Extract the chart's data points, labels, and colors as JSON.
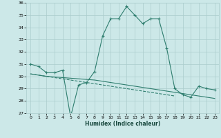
{
  "xlabel": "Humidex (Indice chaleur)",
  "x_values": [
    0,
    1,
    2,
    3,
    4,
    5,
    6,
    7,
    8,
    9,
    10,
    11,
    12,
    13,
    14,
    15,
    16,
    17,
    18,
    19,
    20,
    21,
    22,
    23
  ],
  "line1_y": [
    31.0,
    30.8,
    30.3,
    30.3,
    30.5,
    26.7,
    29.3,
    29.5,
    30.4,
    33.3,
    34.7,
    34.7,
    35.7,
    35.0,
    34.3,
    34.7,
    34.7,
    32.3,
    29.0,
    28.5,
    28.3,
    29.2,
    29.0,
    28.9
  ],
  "line2_y": [
    30.2,
    30.1,
    30.0,
    29.95,
    29.9,
    29.85,
    29.8,
    29.75,
    29.7,
    29.6,
    29.5,
    29.4,
    29.3,
    29.2,
    29.1,
    29.0,
    28.9,
    28.8,
    28.7,
    28.6,
    28.5,
    28.4,
    28.3,
    28.2
  ],
  "line3_y": [
    30.2,
    30.1,
    30.0,
    29.9,
    29.8,
    29.7,
    29.6,
    29.5,
    29.4,
    29.3,
    29.2,
    29.1,
    29.0,
    28.9,
    28.8,
    28.7,
    28.6,
    28.5,
    28.4,
    null,
    null,
    null,
    null,
    null
  ],
  "line_color": "#2e7d6e",
  "bg_color": "#cce8e8",
  "grid_color": "#aacccc",
  "ylim": [
    27,
    36
  ],
  "xlim": [
    -0.5,
    23.5
  ],
  "yticks": [
    27,
    28,
    29,
    30,
    31,
    32,
    33,
    34,
    35,
    36
  ],
  "xticks": [
    0,
    1,
    2,
    3,
    4,
    5,
    6,
    7,
    8,
    9,
    10,
    11,
    12,
    13,
    14,
    15,
    16,
    17,
    18,
    19,
    20,
    21,
    22,
    23
  ]
}
